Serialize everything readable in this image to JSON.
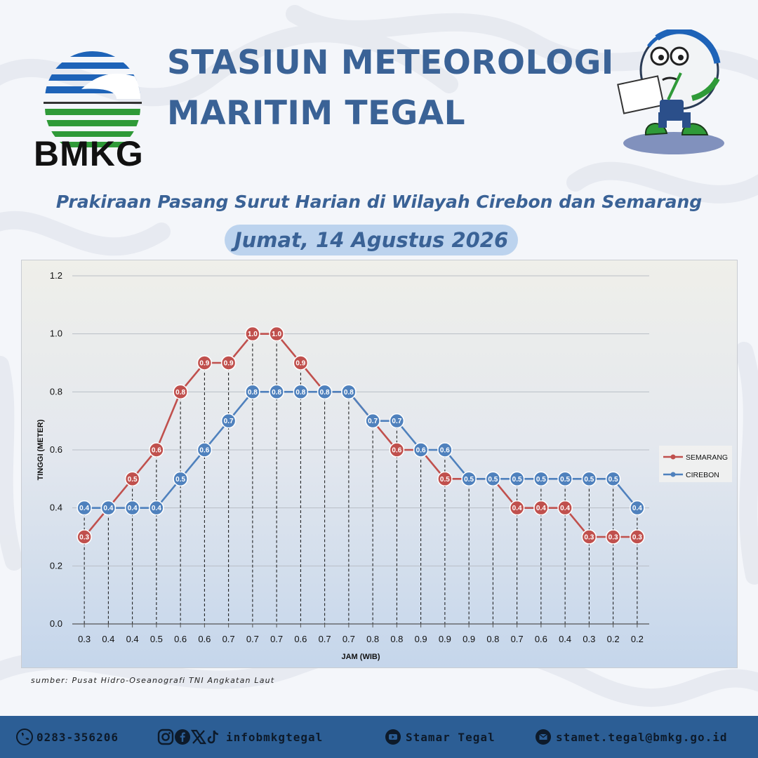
{
  "header": {
    "logo_text": "BMKG",
    "title_line1": "STASIUN METEOROLOGI",
    "title_line2": "MARITIM TEGAL",
    "subtitle": "Prakiraan Pasang Surut Harian di Wilayah Cirebon dan Semarang",
    "date": "Jumat, 14 Agustus 2026"
  },
  "colors": {
    "title": "#3a6296",
    "semarang": "#c0504d",
    "cirebon": "#4f81bd",
    "footer": "#2c5e95",
    "date_pill": "#bcd3ee"
  },
  "chart_data": {
    "type": "line",
    "xlabel": "JAM (WIB)",
    "ylabel": "TINGGI (METER)",
    "ylim": [
      0,
      1.2
    ],
    "yticks": [
      "0.0",
      "0.2",
      "0.4",
      "0.6",
      "0.8",
      "1.0",
      "1.2"
    ],
    "categories": [
      "0.3",
      "0.4",
      "0.4",
      "0.5",
      "0.6",
      "0.6",
      "0.7",
      "0.7",
      "0.7",
      "0.6",
      "0.7",
      "0.7",
      "0.8",
      "0.8",
      "0.9",
      "0.9",
      "0.9",
      "0.8",
      "0.7",
      "0.6",
      "0.4",
      "0.3",
      "0.2",
      "0.2"
    ],
    "grid": true,
    "legend_position": "right",
    "series": [
      {
        "name": "SEMARANG",
        "color": "#c0504d",
        "values": [
          0.3,
          0.4,
          0.5,
          0.6,
          0.8,
          0.9,
          0.9,
          1.0,
          1.0,
          0.9,
          0.8,
          0.8,
          0.7,
          0.6,
          0.6,
          0.5,
          0.5,
          0.5,
          0.4,
          0.4,
          0.4,
          0.3,
          0.3,
          0.3
        ]
      },
      {
        "name": "CIREBON",
        "color": "#4f81bd",
        "values": [
          0.4,
          0.4,
          0.4,
          0.4,
          0.5,
          0.6,
          0.7,
          0.8,
          0.8,
          0.8,
          0.8,
          0.8,
          0.7,
          0.7,
          0.6,
          0.6,
          0.5,
          0.5,
          0.5,
          0.5,
          0.5,
          0.5,
          0.5,
          0.4
        ]
      }
    ]
  },
  "source": "sumber: Pusat Hidro-Oseanografi TNI Angkatan Laut",
  "footer": {
    "phone": "0283-356206",
    "social_handle": "infobmkgtegal",
    "youtube": "Stamar Tegal",
    "email": "stamet.tegal@bmkg.go.id",
    "icons": [
      "phone-icon",
      "instagram-icon",
      "facebook-icon",
      "x-icon",
      "tiktok-icon",
      "youtube-icon",
      "mail-icon"
    ]
  }
}
